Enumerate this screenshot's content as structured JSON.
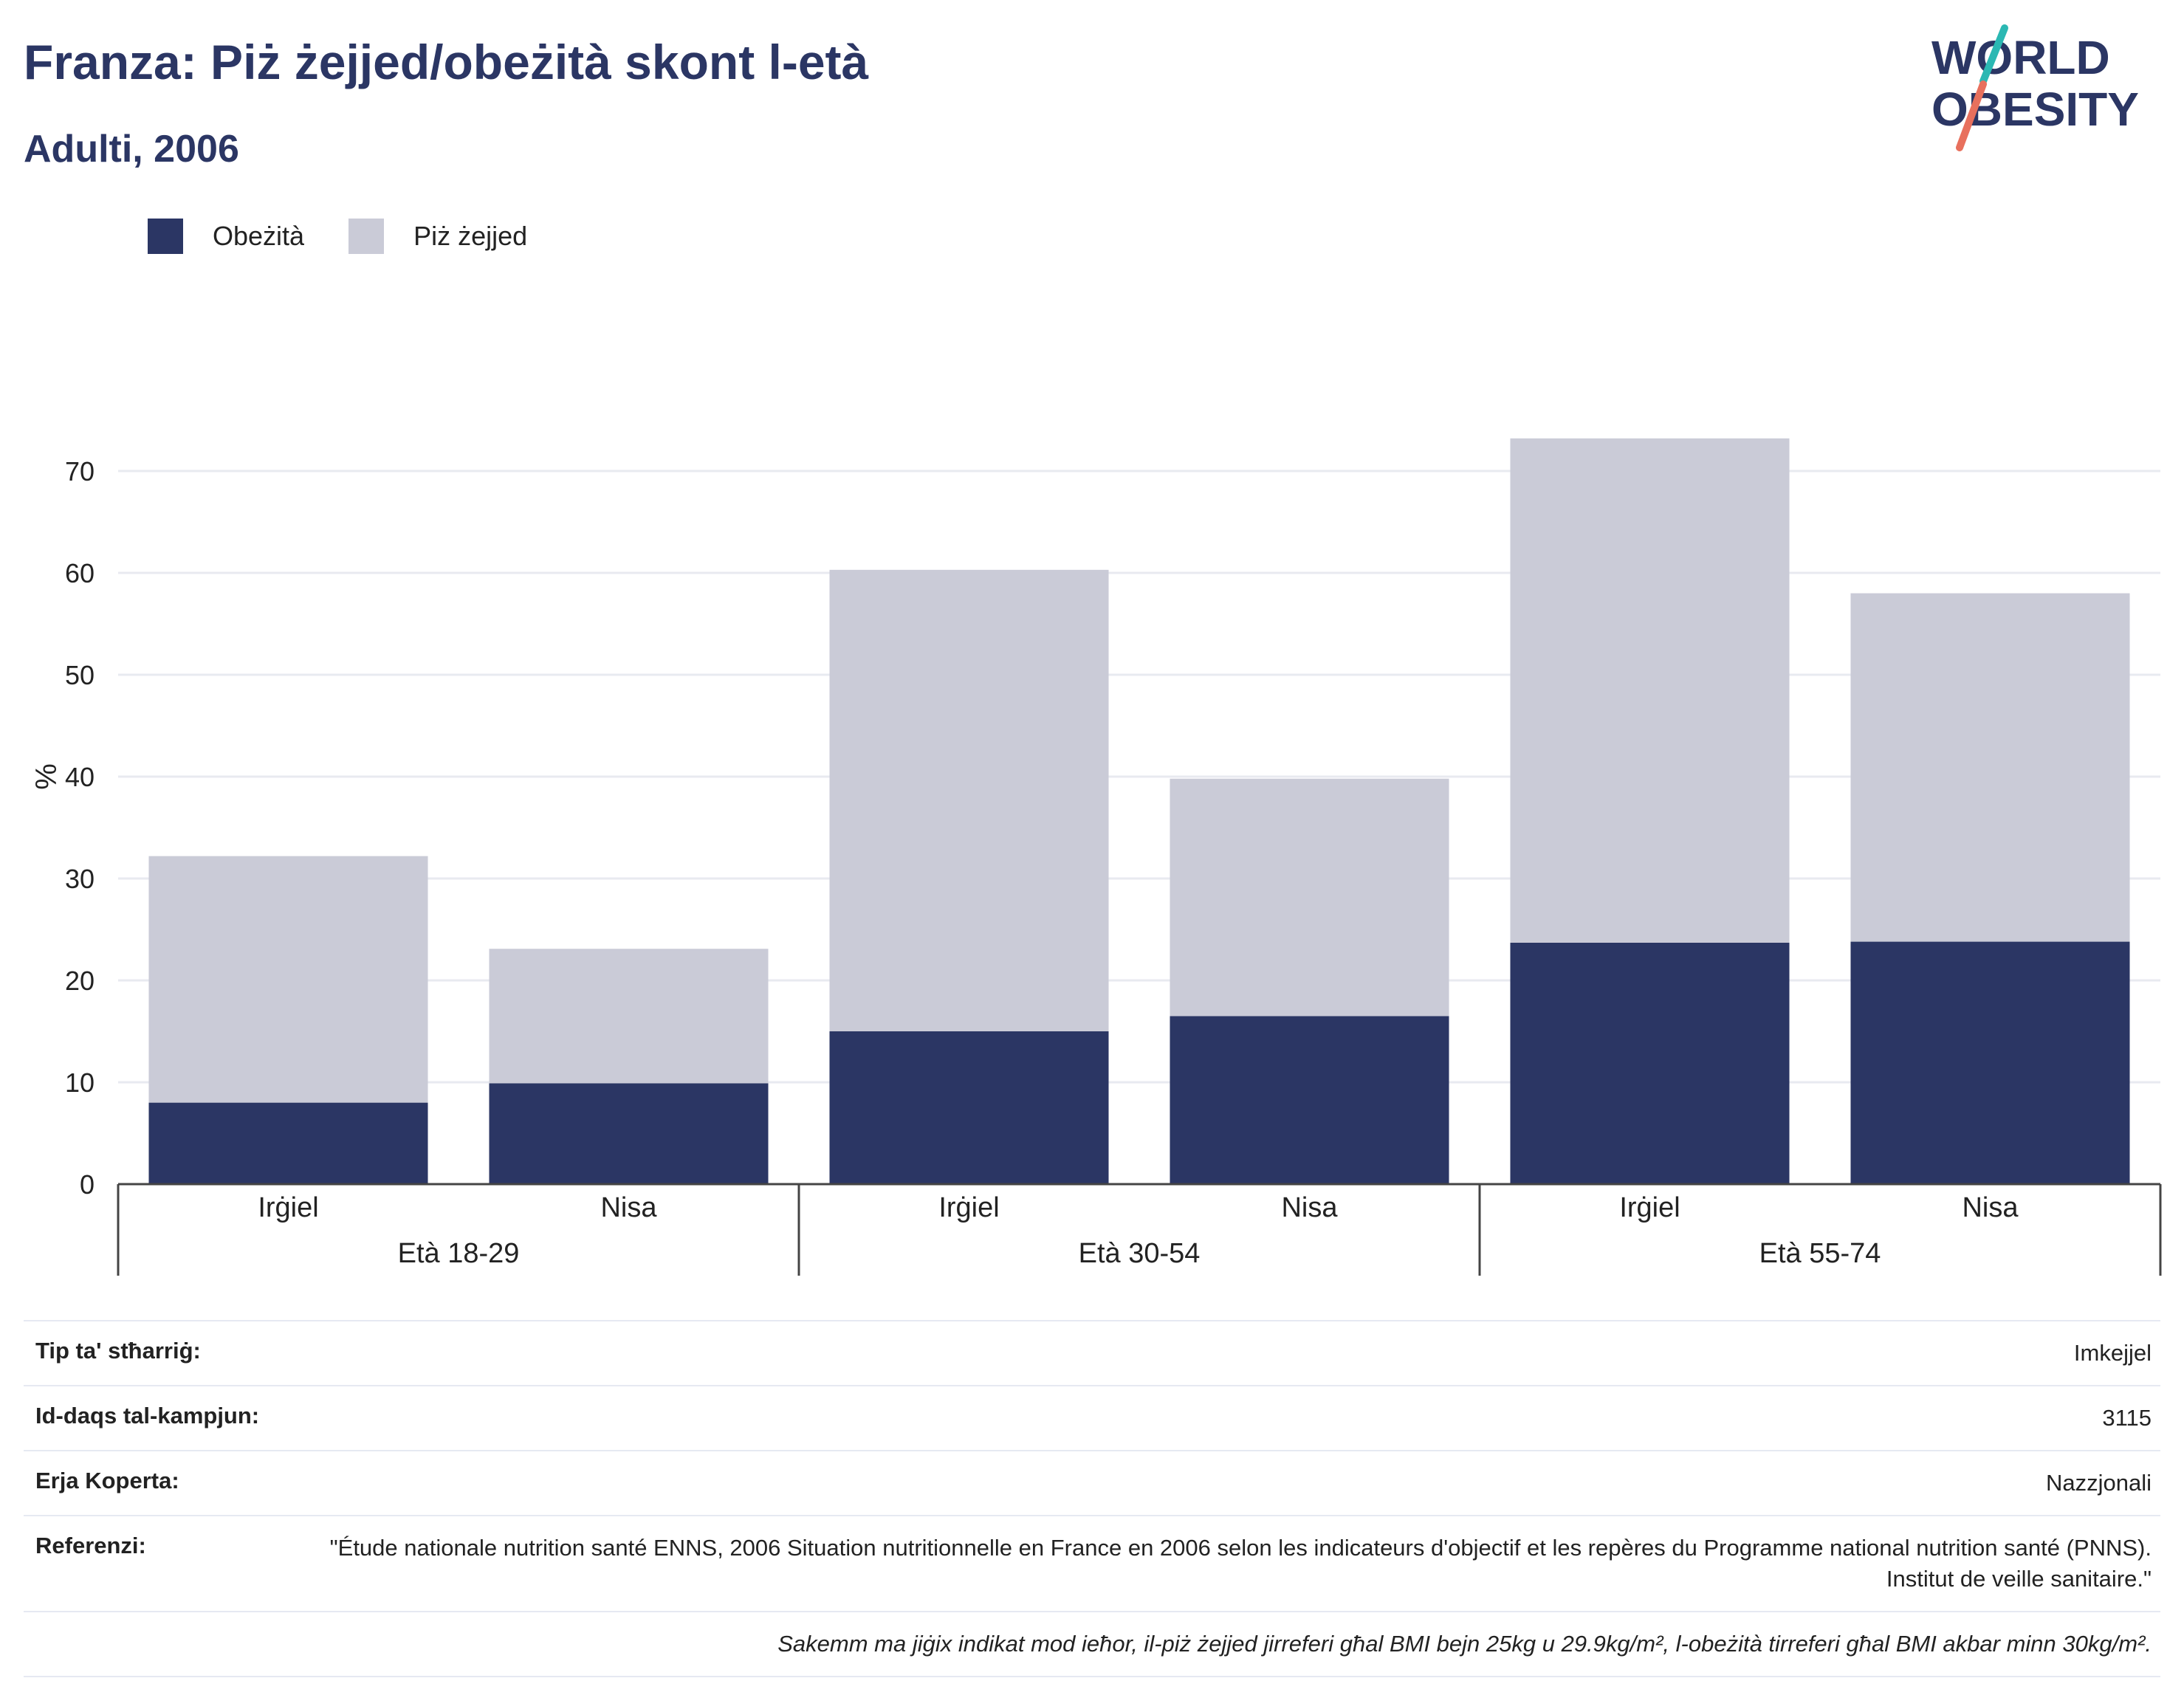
{
  "header": {
    "title": "Franza: Piż żejjed/obeżità skont l-età",
    "subtitle": "Adulti, 2006",
    "logo_line1": "WORLD",
    "logo_line2": "OBESITY"
  },
  "colors": {
    "obesity": "#2b3664",
    "overweight": "#cacbd7",
    "title": "#2b3664",
    "logo_teal": "#2bb8b3",
    "logo_coral": "#e8705d"
  },
  "chart_data": {
    "type": "bar",
    "stacked": true,
    "title": "Franza: Piż żejjed/obeżità skont l-età",
    "subtitle": "Adulti, 2006",
    "ylabel": "%",
    "ylim": [
      0,
      80
    ],
    "yticks": [
      0,
      10,
      20,
      30,
      40,
      50,
      60,
      70
    ],
    "grid": true,
    "legend_position": "top-left",
    "groups": [
      "Età 18-29",
      "Età 30-54",
      "Età 55-74"
    ],
    "categories": [
      "Irġiel",
      "Nisa",
      "Irġiel",
      "Nisa",
      "Irġiel",
      "Nisa"
    ],
    "series": [
      {
        "name": "Obeżità",
        "color": "#2b3664",
        "values": [
          8.0,
          9.9,
          15.0,
          16.5,
          23.7,
          23.8
        ]
      },
      {
        "name": "Piż żejjed",
        "color": "#cacbd7",
        "values": [
          24.2,
          13.2,
          45.3,
          23.3,
          49.5,
          34.2
        ]
      }
    ],
    "totals": [
      32.2,
      23.1,
      60.3,
      39.8,
      73.2,
      58.0
    ]
  },
  "info": {
    "rows": [
      {
        "label": "Tip ta' stħarriġ:",
        "value": "Imkejjel"
      },
      {
        "label": "Id-daqs tal-kampjun:",
        "value": "3115"
      },
      {
        "label": "Erja Koperta:",
        "value": "Nazzjonali"
      },
      {
        "label": "Referenzi:",
        "value": "\"Étude nationale nutrition santé ENNS, 2006 Situation nutritionnelle en France en 2006 selon les indicateurs d'objectif et les repères du Programme national nutrition santé (PNNS). Institut de veille sanitaire.\""
      }
    ],
    "note": "Sakemm ma jiġix indikat mod ieħor, il-piż żejjed jirreferi għal BMI bejn 25kg u 29.9kg/m², l-obeżità tirreferi għal BMI akbar minn 30kg/m²."
  }
}
